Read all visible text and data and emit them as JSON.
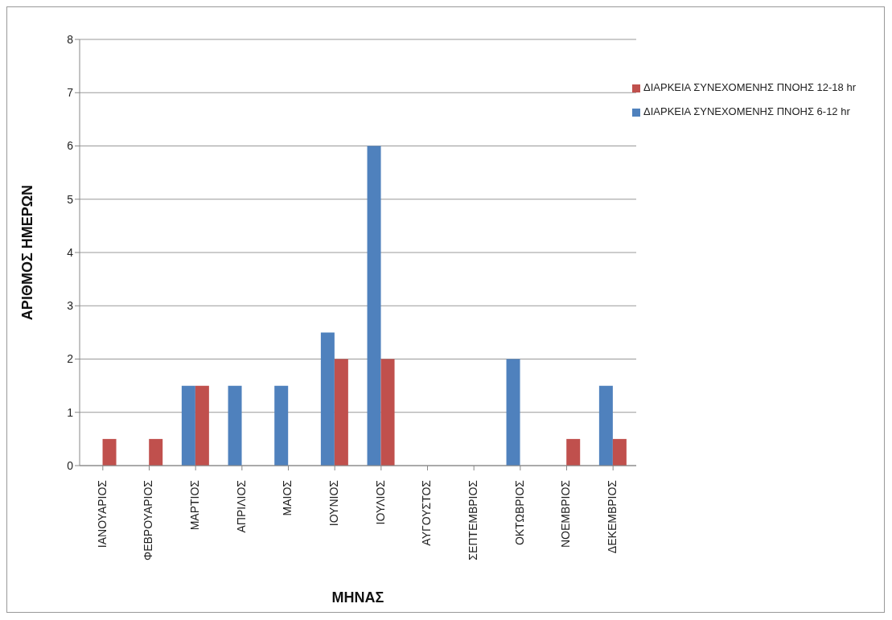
{
  "chart_data": {
    "type": "bar",
    "xlabel": "ΜΗΝΑΣ",
    "ylabel": "ΑΡΙΘΜΟΣ ΗΜΕΡΩΝ",
    "categories": [
      "ΙΑΝΟΥΑΡΙΟΣ",
      "ΦΕΒΡΟΥΑΡΙΟΣ",
      "ΜΑΡΤΙΟΣ",
      "ΑΠΡΙΛΙΟΣ",
      "ΜΑΙΟΣ",
      "ΙΟΥΝΙΟΣ",
      "ΙΟΥΛΙΟΣ",
      "ΑΥΓΟΥΣΤΟΣ",
      "ΣΕΠΤΕΜΒΡΙΟΣ",
      "ΟΚΤΩΒΡΙΟΣ",
      "ΝΟΕΜΒΡΙΟΣ",
      "ΔΕΚΕΜΒΡΙΟΣ"
    ],
    "series": [
      {
        "name": "ΔΙΑΡΚΕΙΑ ΣΥΝΕΧΟΜΕΝΗΣ ΠΝΟΗΣ 6-12 hr",
        "color": "#4f81bd",
        "values": [
          0,
          0,
          1.5,
          1.5,
          1.5,
          2.5,
          6,
          0,
          0,
          2,
          0,
          1.5
        ]
      },
      {
        "name": "ΔΙΑΡΚΕΙΑ ΣΥΝΕΧΟΜΕΝΗΣ ΠΝΟΗΣ 12-18 hr",
        "color": "#c0504d",
        "values": [
          0.5,
          0.5,
          1.5,
          0,
          0,
          2,
          2,
          0,
          0,
          0,
          0.5,
          0.5
        ]
      }
    ],
    "ylim": [
      0,
      8
    ],
    "yticks": [
      0,
      1,
      2,
      3,
      4,
      5,
      6,
      7,
      8
    ],
    "grid": "y",
    "legend": "top right"
  }
}
